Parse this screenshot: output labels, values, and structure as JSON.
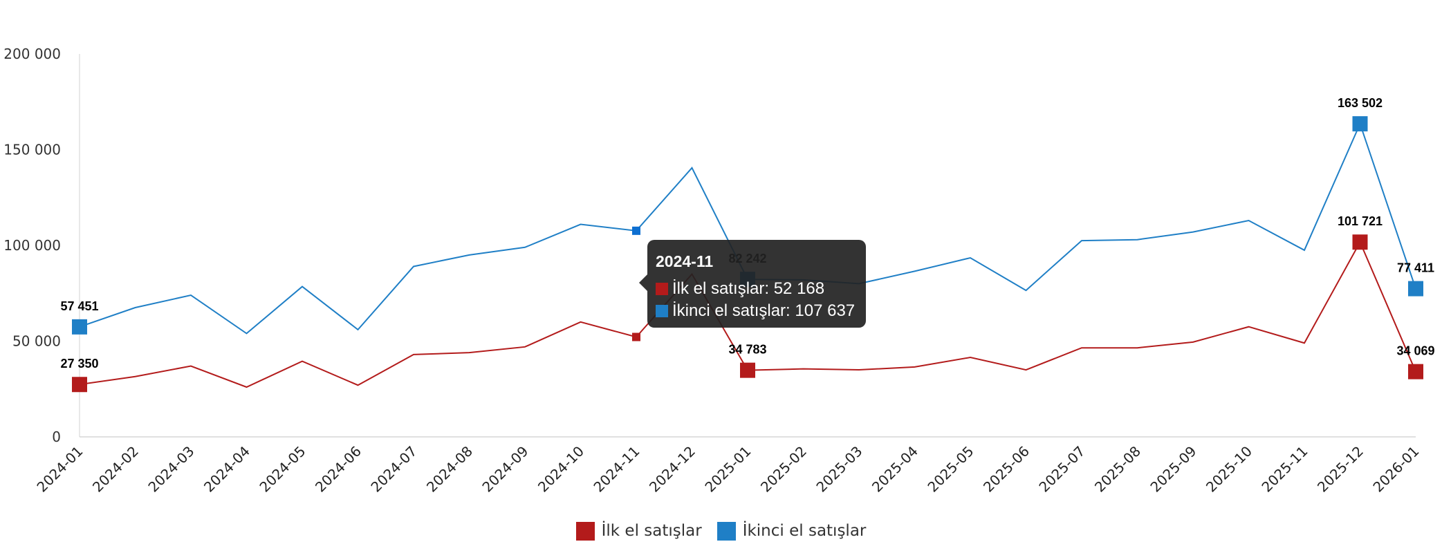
{
  "chart_data": {
    "type": "line",
    "categories": [
      "2024-01",
      "2024-02",
      "2024-03",
      "2024-04",
      "2024-05",
      "2024-06",
      "2024-07",
      "2024-08",
      "2024-09",
      "2024-10",
      "2024-11",
      "2024-12",
      "2025-01",
      "2025-02",
      "2025-03",
      "2025-04",
      "2025-05",
      "2025-06",
      "2025-07",
      "2025-08",
      "2025-09",
      "2025-10",
      "2025-11",
      "2025-12",
      "2026-01"
    ],
    "series": [
      {
        "name": "İlk el satışlar",
        "color": "#b31b1b",
        "values": [
          27350,
          31500,
          37000,
          26000,
          39500,
          27000,
          43000,
          44000,
          47000,
          60000,
          52168,
          85000,
          34783,
          35500,
          35000,
          36500,
          41500,
          35000,
          46500,
          46500,
          49500,
          57500,
          49000,
          101721,
          34069
        ],
        "labeled_indices": [
          0,
          12,
          23,
          24
        ]
      },
      {
        "name": "İkinci el satışlar",
        "color": "#1f7fc6",
        "values": [
          57451,
          67500,
          74000,
          54000,
          78500,
          56000,
          89000,
          95000,
          99000,
          111000,
          107637,
          140500,
          82242,
          82000,
          80000,
          86500,
          93500,
          76500,
          102500,
          103000,
          107000,
          113000,
          97500,
          163502,
          77411
        ],
        "labeled_indices": [
          0,
          12,
          23,
          24
        ]
      }
    ],
    "data_labels": {
      "series0": [
        "27 350",
        "34 783",
        "101 721",
        "34 069"
      ],
      "series1": [
        "57 451",
        "82 242",
        "163 502",
        "77 411"
      ]
    },
    "ylim": [
      0,
      200000
    ],
    "yticks": [
      0,
      50000,
      100000,
      150000,
      200000
    ],
    "ytick_labels": [
      "0",
      "50 000",
      "100 000",
      "150 000",
      "200 000"
    ],
    "grid": false,
    "legend_position": "bottom"
  },
  "legend": {
    "items": [
      {
        "label": "İlk el satışlar",
        "color": "#b31b1b"
      },
      {
        "label": "İkinci el satışlar",
        "color": "#1f7fc6"
      }
    ]
  },
  "tooltip": {
    "title": "2024-11",
    "category_index": 10,
    "rows": [
      {
        "text": "İlk el satışlar: 52 168",
        "color": "#b31b1b"
      },
      {
        "text": "İkinci el satışlar: 107 637",
        "color": "#1f7fc6"
      }
    ]
  }
}
